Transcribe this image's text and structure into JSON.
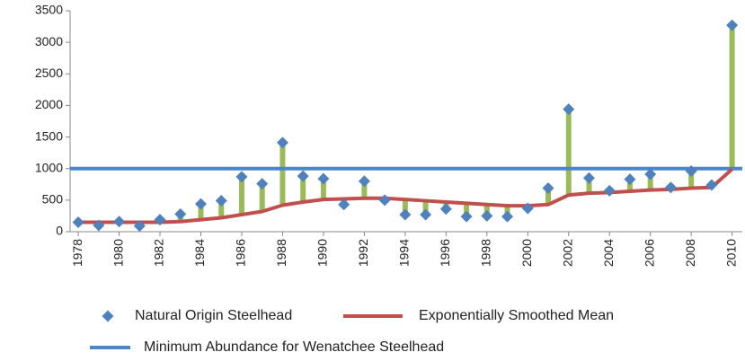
{
  "chart_data": {
    "type": "line",
    "x": [
      1978,
      1979,
      1980,
      1981,
      1982,
      1983,
      1984,
      1985,
      1986,
      1987,
      1988,
      1989,
      1990,
      1991,
      1992,
      1993,
      1994,
      1995,
      1996,
      1997,
      1998,
      1999,
      2000,
      2001,
      2002,
      2003,
      2004,
      2005,
      2006,
      2007,
      2008,
      2009,
      2010
    ],
    "series": [
      {
        "name": "Natural Origin Steelhead",
        "color": "#4f81bd",
        "marker": "diamond",
        "values": [
          150,
          100,
          160,
          90,
          190,
          280,
          440,
          490,
          870,
          760,
          1410,
          880,
          840,
          430,
          800,
          500,
          270,
          270,
          360,
          240,
          250,
          240,
          370,
          690,
          1940,
          850,
          650,
          830,
          910,
          700,
          960,
          740,
          3270
        ]
      },
      {
        "name": "Exponentially Smoothed Mean",
        "color": "#c0504d",
        "marker": "none",
        "values": [
          150,
          150,
          150,
          150,
          150,
          160,
          190,
          220,
          270,
          320,
          420,
          470,
          510,
          520,
          530,
          530,
          510,
          490,
          470,
          450,
          430,
          410,
          410,
          430,
          580,
          610,
          620,
          640,
          660,
          670,
          690,
          700,
          990
        ]
      }
    ],
    "reference_line": {
      "name": "Minimum Abundance for Wenatchee Steelhead",
      "value": 1000,
      "color": "#4a86c8"
    },
    "drop_line_color": "#9bbb59",
    "xlim": [
      1977.6,
      2010.5
    ],
    "xticks": [
      1978,
      1980,
      1982,
      1984,
      1986,
      1988,
      1990,
      1992,
      1994,
      1996,
      1998,
      2000,
      2002,
      2004,
      2006,
      2008,
      2010
    ],
    "ylim": [
      0,
      3500
    ],
    "yticks": [
      0,
      500,
      1000,
      1500,
      2000,
      2500,
      3000,
      3500
    ],
    "grid": false
  }
}
